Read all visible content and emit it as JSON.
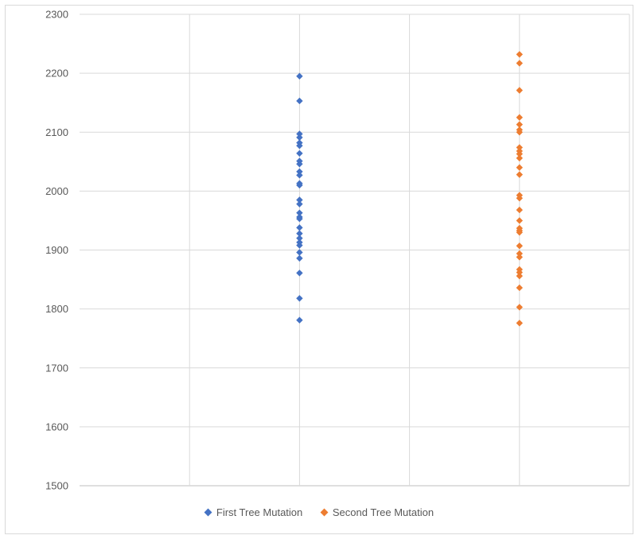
{
  "chart_data": {
    "type": "scatter",
    "title": "",
    "xlabel": "",
    "ylabel": "",
    "xlim": [
      0,
      5
    ],
    "ylim": [
      1500,
      2300
    ],
    "yticks": [
      1500,
      1600,
      1700,
      1800,
      1900,
      2000,
      2100,
      2200,
      2300
    ],
    "xgrid": [
      1,
      2,
      3,
      4,
      5
    ],
    "grid": true,
    "legend_position": "bottom",
    "series": [
      {
        "name": "First Tree Mutation",
        "color": "#4472C4",
        "marker": "diamond",
        "x": 2,
        "values": [
          2195,
          2153,
          2097,
          2091,
          2082,
          2077,
          2064,
          2051,
          2046,
          2033,
          2027,
          2013,
          2010,
          1985,
          1978,
          1963,
          1956,
          1953,
          1938,
          1928,
          1920,
          1913,
          1908,
          1896,
          1886,
          1861,
          1818,
          1781
        ]
      },
      {
        "name": "Second Tree Mutation",
        "color": "#ED7D31",
        "marker": "diamond",
        "x": 4,
        "values": [
          2232,
          2217,
          2171,
          2125,
          2113,
          2104,
          2100,
          2074,
          2068,
          2063,
          2056,
          2040,
          2028,
          1993,
          1988,
          1968,
          1950,
          1937,
          1933,
          1930,
          1907,
          1894,
          1888,
          1867,
          1862,
          1856,
          1836,
          1803,
          1776
        ]
      }
    ]
  }
}
